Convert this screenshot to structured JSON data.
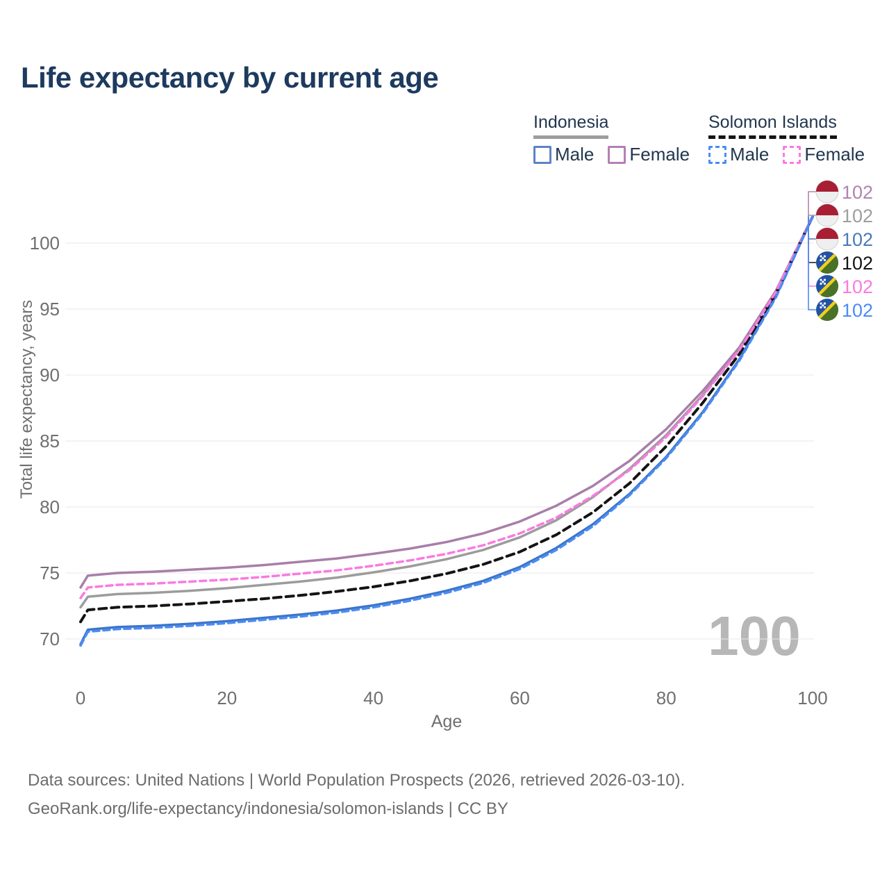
{
  "title": "Life expectancy by current age",
  "legend": {
    "groups": [
      {
        "label": "Indonesia",
        "line_style": "solid",
        "line_color": "#9e9e9e",
        "items": [
          {
            "label": "Male",
            "color": "#5b84c4"
          },
          {
            "label": "Female",
            "color": "#b57fb3"
          }
        ]
      },
      {
        "label": "Solomon Islands",
        "line_style": "dashed",
        "line_color": "#141414",
        "items": [
          {
            "label": "Male",
            "color": "#4b8cf4"
          },
          {
            "label": "Female",
            "color": "#fa7ae1"
          }
        ]
      }
    ]
  },
  "chart_data": {
    "type": "line",
    "title": "Life expectancy by current age",
    "xlabel": "Age",
    "ylabel": "Total life expectancy, years",
    "x_ticks": [
      0,
      20,
      40,
      60,
      80,
      100
    ],
    "y_ticks": [
      70,
      75,
      80,
      85,
      90,
      95,
      100
    ],
    "xlim": [
      0,
      100
    ],
    "ylim": [
      69,
      102.5
    ],
    "grid": "horizontal-only",
    "watermark_age": "100",
    "x": [
      0,
      1,
      5,
      10,
      15,
      20,
      25,
      30,
      35,
      40,
      45,
      50,
      55,
      60,
      65,
      70,
      75,
      80,
      85,
      90,
      95,
      100
    ],
    "series": [
      {
        "name": "Indonesia Female",
        "color": "#a97ea9",
        "dash": null,
        "width": 3.5,
        "values": [
          73.9,
          74.8,
          75.0,
          75.1,
          75.25,
          75.4,
          75.6,
          75.85,
          76.1,
          76.45,
          76.85,
          77.35,
          78.0,
          78.9,
          80.1,
          81.6,
          83.5,
          85.9,
          88.8,
          92.1,
          96.4,
          102
        ]
      },
      {
        "name": "Indonesia (all)",
        "color": "#9c9c9c",
        "dash": null,
        "width": 3.5,
        "values": [
          72.4,
          73.2,
          73.4,
          73.5,
          73.65,
          73.85,
          74.1,
          74.35,
          74.65,
          75.05,
          75.5,
          76.05,
          76.75,
          77.7,
          79.0,
          80.75,
          82.9,
          85.45,
          88.5,
          92.0,
          96.35,
          102
        ]
      },
      {
        "name": "Indonesia Male",
        "color": "#3d74c8",
        "dash": null,
        "width": 3.5,
        "values": [
          69.6,
          70.7,
          70.9,
          71.0,
          71.15,
          71.35,
          71.6,
          71.85,
          72.15,
          72.55,
          73.05,
          73.65,
          74.4,
          75.45,
          76.9,
          78.7,
          81.0,
          83.8,
          87.2,
          91.2,
          96.0,
          102
        ]
      },
      {
        "name": "Solomon Islands (all)",
        "color": "#141414",
        "dash": "11 7",
        "width": 4,
        "values": [
          71.3,
          72.2,
          72.4,
          72.5,
          72.65,
          72.85,
          73.05,
          73.3,
          73.6,
          73.95,
          74.4,
          74.95,
          75.65,
          76.6,
          77.9,
          79.6,
          81.8,
          84.6,
          87.9,
          91.6,
          96.2,
          102
        ]
      },
      {
        "name": "Solomon Islands Female",
        "color": "#fa7ae1",
        "dash": "9 6",
        "width": 3.5,
        "values": [
          73.1,
          73.9,
          74.1,
          74.2,
          74.35,
          74.5,
          74.7,
          74.95,
          75.2,
          75.55,
          75.95,
          76.45,
          77.1,
          78.0,
          79.2,
          80.85,
          82.8,
          85.3,
          88.4,
          91.9,
          96.3,
          102
        ]
      },
      {
        "name": "Solomon Islands Male",
        "color": "#4b8cf4",
        "dash": "9 6",
        "width": 3.5,
        "values": [
          69.5,
          70.55,
          70.75,
          70.85,
          71.0,
          71.2,
          71.45,
          71.7,
          72.0,
          72.4,
          72.9,
          73.5,
          74.25,
          75.3,
          76.75,
          78.55,
          80.9,
          83.7,
          87.1,
          91.1,
          95.9,
          102
        ]
      }
    ]
  },
  "callout": {
    "rows": [
      {
        "flag": "indonesia",
        "series": "Indonesia Female",
        "label": "102",
        "color": "#b183b1"
      },
      {
        "flag": "indonesia",
        "series": "Indonesia (all)",
        "label": "102",
        "color": "#9e9e9e"
      },
      {
        "flag": "indonesia",
        "series": "Indonesia Male",
        "label": "102",
        "color": "#4a79b8"
      },
      {
        "flag": "solomon-islands",
        "series": "Solomon Islands (all)",
        "label": "102",
        "color": "#141414"
      },
      {
        "flag": "solomon-islands",
        "series": "Solomon Islands Female",
        "label": "102",
        "color": "#fa7ae1"
      },
      {
        "flag": "solomon-islands",
        "series": "Solomon Islands Male",
        "label": "102",
        "color": "#4b8cf4"
      }
    ]
  },
  "flag_colors": {
    "indonesia_red": "#a81e33",
    "indonesia_white": "#efefef",
    "solomon_blue": "#2253a3",
    "solomon_green": "#4a7226",
    "solomon_yellow": "#f2cf1e"
  },
  "footer": {
    "line1": "Data sources: United Nations | World Population Prospects (2026, retrieved 2026-03-10).",
    "line2": "GeoRank.org/life-expectancy/indonesia/solomon-islands | CC BY"
  }
}
